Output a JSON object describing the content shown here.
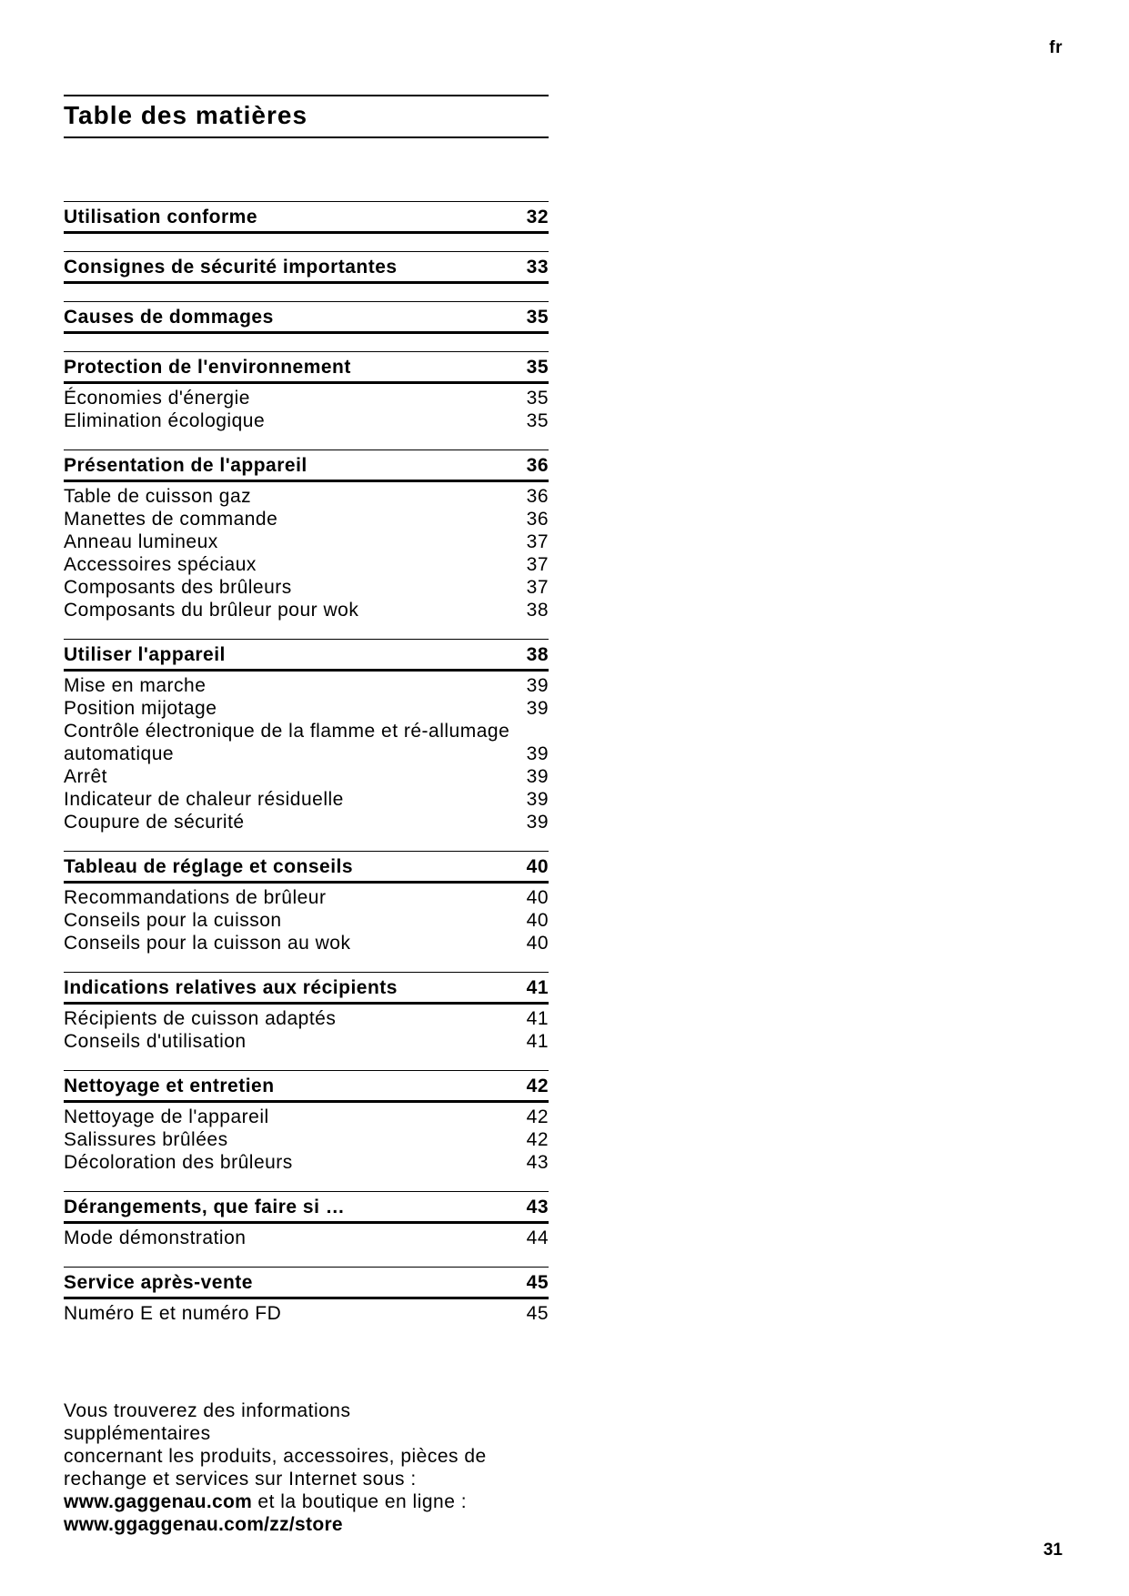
{
  "lang_label": "fr",
  "page_number": "31",
  "title": "Table des matières",
  "colors": {
    "text": "#000000",
    "background": "#ffffff"
  },
  "toc": {
    "sections": [
      {
        "title": "Utilisation conforme",
        "page": "32",
        "items": []
      },
      {
        "title": "Consignes de sécurité importantes",
        "page": "33",
        "items": []
      },
      {
        "title": "Causes de dommages",
        "page": "35",
        "items": []
      },
      {
        "title": "Protection de l'environnement",
        "page": "35",
        "items": [
          {
            "label": "Économies d'énergie",
            "page": "35"
          },
          {
            "label": "Elimination écologique",
            "page": "35"
          }
        ]
      },
      {
        "title": "Présentation de l'appareil",
        "page": "36",
        "items": [
          {
            "label": "Table de cuisson gaz",
            "page": "36"
          },
          {
            "label": "Manettes de commande",
            "page": "36"
          },
          {
            "label": "Anneau lumineux",
            "page": "37"
          },
          {
            "label": "Accessoires spéciaux",
            "page": "37"
          },
          {
            "label": "Composants des brûleurs",
            "page": "37"
          },
          {
            "label": "Composants du brûleur pour wok",
            "page": "38"
          }
        ]
      },
      {
        "title": "Utiliser l'appareil",
        "page": "38",
        "items": [
          {
            "label": "Mise en marche",
            "page": "39"
          },
          {
            "label": "Position mijotage",
            "page": "39"
          },
          {
            "label": "Contrôle électronique de la flamme et ré-allumage automatique",
            "page": "39"
          },
          {
            "label": "Arrêt",
            "page": "39"
          },
          {
            "label": "Indicateur de chaleur résiduelle",
            "page": "39"
          },
          {
            "label": "Coupure de sécurité",
            "page": "39"
          }
        ]
      },
      {
        "title": "Tableau de réglage et conseils",
        "page": "40",
        "items": [
          {
            "label": "Recommandations de brûleur",
            "page": "40"
          },
          {
            "label": "Conseils pour la cuisson",
            "page": "40"
          },
          {
            "label": "Conseils pour la cuisson au wok",
            "page": "40"
          }
        ]
      },
      {
        "title": "Indications relatives aux récipients",
        "page": "41",
        "items": [
          {
            "label": "Récipients de cuisson adaptés",
            "page": "41"
          },
          {
            "label": "Conseils d'utilisation",
            "page": "41"
          }
        ]
      },
      {
        "title": "Nettoyage et entretien",
        "page": "42",
        "items": [
          {
            "label": "Nettoyage de l'appareil",
            "page": "42"
          },
          {
            "label": "Salissures brûlées",
            "page": "42"
          },
          {
            "label": "Décoloration des brûleurs",
            "page": "43"
          }
        ]
      },
      {
        "title": "Dérangements, que faire si …",
        "page": "43",
        "items": [
          {
            "label": "Mode démonstration",
            "page": "44"
          }
        ]
      },
      {
        "title": "Service après-vente",
        "page": "45",
        "items": [
          {
            "label": "Numéro E et numéro FD",
            "page": "45"
          }
        ]
      }
    ]
  },
  "footer": {
    "lines": [
      "Vous trouverez des informations supplémentaires",
      "concernant les produits, accessoires, pièces de",
      "rechange et services sur Internet sous :"
    ],
    "url_main": "www.gaggenau.com",
    "url_main_suffix": " et la boutique en ligne :",
    "url_store": "www.ggaggenau.com/zz/store"
  }
}
